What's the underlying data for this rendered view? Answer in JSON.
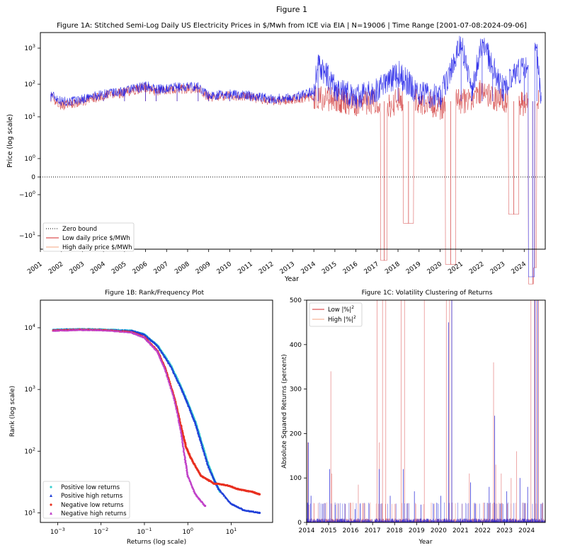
{
  "figure": {
    "title": "Figure 1"
  },
  "chart_data": [
    {
      "id": "fig1a",
      "type": "line",
      "title": "Figure 1A: Stitched Semi-Log Daily US Electricity Prices in $/Mwh from ICE via EIA | N=19006 | Time Range [2001-07-08:2024-09-06]",
      "xlabel": "Year",
      "ylabel": "Price (log scale)",
      "yscale": "symlog",
      "x_ticks": [
        "2001",
        "2002",
        "2003",
        "2004",
        "2005",
        "2006",
        "2007",
        "2008",
        "2009",
        "2010",
        "2011",
        "2012",
        "2013",
        "2014",
        "2015",
        "2016",
        "2017",
        "2018",
        "2019",
        "2020",
        "2021",
        "2022",
        "2023",
        "2024"
      ],
      "y_ticks": [
        {
          "base": "10",
          "exp": "3",
          "value": 1000
        },
        {
          "base": "10",
          "exp": "2",
          "value": 100
        },
        {
          "base": "10",
          "exp": "1",
          "value": 10
        },
        {
          "base": "10",
          "exp": "0",
          "value": 1
        },
        {
          "base": "0",
          "exp": "",
          "value": 0
        },
        {
          "base": "−10",
          "exp": "0",
          "value": -1
        },
        {
          "base": "−10",
          "exp": "1",
          "value": -10
        }
      ],
      "legend_position": "lower-left",
      "legend": [
        {
          "label": "Zero bound",
          "color": "#000000",
          "style": "dotted"
        },
        {
          "label": "Low daily price $/MWh",
          "color": "#d62728",
          "style": "solid"
        },
        {
          "label": "High daily price $/MWh",
          "color": "#f4a582",
          "style": "solid"
        }
      ],
      "series": [
        {
          "name": "Low daily price $/MWh",
          "color": "#cc2222",
          "x": [
            2001.5,
            2002.0,
            2002.5,
            2003.0,
            2004.0,
            2005.0,
            2006.0,
            2006.5,
            2007.5,
            2008.5,
            2009.0,
            2010.0,
            2011.0,
            2012.0,
            2013.0,
            2014.0,
            2015.0,
            2016.0,
            2017.0,
            2017.35,
            2017.6,
            2018.0,
            2018.5,
            2019.0,
            2019.5,
            2020.0,
            2020.5,
            2021.0,
            2021.5,
            2022.0,
            2022.5,
            2023.0,
            2023.5,
            2024.0,
            2024.4,
            2024.5,
            2024.7
          ],
          "y": [
            40,
            22,
            25,
            30,
            45,
            55,
            80,
            60,
            70,
            75,
            40,
            45,
            40,
            30,
            35,
            40,
            35,
            25,
            30,
            -40,
            20,
            35,
            -5,
            30,
            25,
            20,
            -50,
            30,
            35,
            60,
            40,
            30,
            -3,
            25,
            -150,
            -60,
            30
          ]
        },
        {
          "name": "High daily price $/MWh",
          "color": "#1f1fe8",
          "x": [
            2001.5,
            2002.0,
            2002.5,
            2003.0,
            2004.0,
            2005.0,
            2006.0,
            2006.5,
            2007.5,
            2008.5,
            2009.0,
            2010.0,
            2011.0,
            2012.0,
            2013.0,
            2014.0,
            2014.2,
            2015.0,
            2016.0,
            2017.0,
            2018.0,
            2019.0,
            2020.0,
            2021.0,
            2021.5,
            2022.0,
            2022.5,
            2023.0,
            2024.0,
            2024.4,
            2024.6,
            2024.8
          ],
          "y": [
            50,
            30,
            30,
            35,
            50,
            60,
            90,
            70,
            80,
            85,
            45,
            50,
            45,
            35,
            40,
            60,
            400,
            70,
            40,
            60,
            200,
            50,
            40,
            1500,
            60,
            1800,
            300,
            70,
            300,
            -100,
            900,
            45
          ]
        },
        {
          "name": "Zero bound",
          "color": "#000000",
          "x": [
            2001,
            2025
          ],
          "y": [
            0,
            0
          ]
        }
      ]
    },
    {
      "id": "fig1b",
      "type": "scatter",
      "title": "Figure 1B: Rank/Frequency Plot",
      "xlabel": "Returns (log scale)",
      "ylabel": "Rank (log scale)",
      "xscale": "log",
      "yscale": "log",
      "x_ticks": [
        {
          "base": "10",
          "exp": "−3",
          "value": 0.001
        },
        {
          "base": "10",
          "exp": "−2",
          "value": 0.01
        },
        {
          "base": "10",
          "exp": "−1",
          "value": 0.1
        },
        {
          "base": "10",
          "exp": "0",
          "value": 1
        },
        {
          "base": "10",
          "exp": "1",
          "value": 10
        }
      ],
      "y_ticks": [
        {
          "base": "10",
          "exp": "1",
          "value": 10
        },
        {
          "base": "10",
          "exp": "2",
          "value": 100
        },
        {
          "base": "10",
          "exp": "3",
          "value": 1000
        },
        {
          "base": "10",
          "exp": "4",
          "value": 10000
        }
      ],
      "xlim": [
        0.0004,
        90
      ],
      "ylim": [
        7,
        28000
      ],
      "legend_position": "lower-left",
      "series": [
        {
          "name": "Positive low returns",
          "color": "#38d0d0",
          "marker": "circle",
          "x": [
            0.0008,
            0.003,
            0.01,
            0.05,
            0.1,
            0.2,
            0.4,
            0.7,
            1.0,
            1.5,
            2.0,
            3.0,
            4.0,
            5.5
          ],
          "y": [
            9300,
            9500,
            9400,
            9000,
            7800,
            5200,
            2500,
            1100,
            600,
            300,
            150,
            60,
            35,
            22
          ]
        },
        {
          "name": "Positive high returns",
          "color": "#1f3fd8",
          "marker": "triangle",
          "x": [
            0.0008,
            0.003,
            0.01,
            0.05,
            0.1,
            0.2,
            0.4,
            0.7,
            1.0,
            1.5,
            2.0,
            3.0,
            5.0,
            10.0,
            20.0,
            45.0
          ],
          "y": [
            9200,
            9400,
            9300,
            8900,
            7700,
            5100,
            2400,
            1050,
            580,
            280,
            140,
            55,
            25,
            14,
            11,
            10
          ]
        },
        {
          "name": "Negative low returns",
          "color": "#e83020",
          "marker": "circle",
          "x": [
            0.0008,
            0.003,
            0.01,
            0.05,
            0.1,
            0.2,
            0.3,
            0.5,
            0.7,
            0.9,
            1.2,
            2.0,
            4.0,
            8.0,
            15.0,
            30.0,
            45.0
          ],
          "y": [
            9000,
            9300,
            9200,
            8500,
            7000,
            4200,
            2200,
            700,
            250,
            120,
            75,
            40,
            30,
            28,
            24,
            22,
            20
          ]
        },
        {
          "name": "Negative high returns",
          "color": "#c040c8",
          "marker": "triangle",
          "x": [
            0.0008,
            0.003,
            0.01,
            0.05,
            0.1,
            0.2,
            0.3,
            0.5,
            0.7,
            0.85,
            1.0,
            1.5,
            2.5
          ],
          "y": [
            8900,
            9200,
            9100,
            8400,
            6900,
            4100,
            2100,
            650,
            200,
            80,
            40,
            20,
            13
          ]
        }
      ]
    },
    {
      "id": "fig1c",
      "type": "line",
      "title": "Figure 1C: Volatility Clustering of Returns",
      "xlabel": "Year",
      "ylabel": "Absolute Squared Returns (percent)",
      "x_ticks": [
        "2014",
        "2015",
        "2016",
        "2017",
        "2018",
        "2019",
        "2020",
        "2021",
        "2022",
        "2023",
        "2024"
      ],
      "y_ticks": [
        "0",
        "100",
        "200",
        "300",
        "400",
        "500"
      ],
      "xlim": [
        2014,
        2024.85
      ],
      "ylim": [
        0,
        500
      ],
      "legend_position": "upper-left",
      "legend": [
        {
          "label": "Low |%|",
          "sup": "2",
          "color": "#d62728"
        },
        {
          "label": "High |%|",
          "sup": "2",
          "color": "#f4a582"
        }
      ],
      "series": [
        {
          "name": "Low |%|2",
          "color": "#d63030",
          "x": [
            2014.05,
            2014.12,
            2015.1,
            2015.15,
            2016.35,
            2017.2,
            2017.3,
            2017.45,
            2017.6,
            2018.3,
            2018.45,
            2019.35,
            2020.35,
            2020.5,
            2020.6,
            2021.4,
            2022.5,
            2022.6,
            2022.85,
            2023.3,
            2023.55,
            2024.2,
            2024.35,
            2024.45,
            2024.55
          ],
          "y": [
            180,
            40,
            340,
            110,
            85,
            500,
            180,
            500,
            500,
            500,
            500,
            500,
            500,
            500,
            500,
            110,
            360,
            130,
            110,
            100,
            160,
            500,
            500,
            500,
            500
          ]
        },
        {
          "name": "High |%|2",
          "color": "#2626d8",
          "x": [
            2014.08,
            2014.2,
            2015.05,
            2015.3,
            2016.2,
            2017.3,
            2017.8,
            2018.4,
            2018.9,
            2019.2,
            2020.1,
            2020.45,
            2020.6,
            2021.45,
            2022.3,
            2022.55,
            2023.1,
            2023.7,
            2024.05,
            2024.38,
            2024.5
          ],
          "y": [
            180,
            60,
            120,
            40,
            30,
            120,
            60,
            120,
            70,
            40,
            60,
            450,
            500,
            90,
            80,
            240,
            70,
            100,
            80,
            500,
            500
          ]
        }
      ]
    }
  ]
}
